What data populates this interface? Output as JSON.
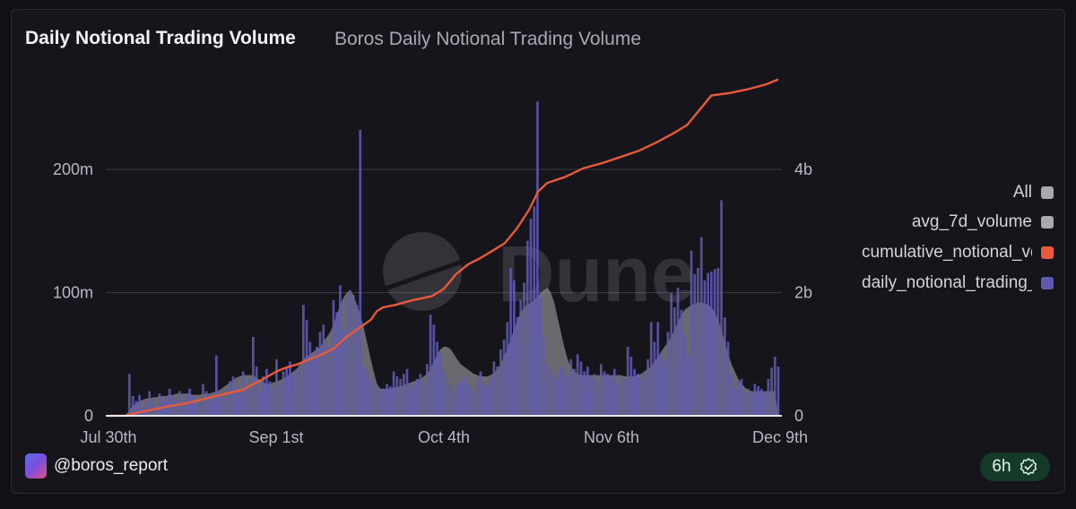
{
  "header": {
    "title": "Daily Notional Trading Volume",
    "subtitle": "Boros Daily Notional Trading Volume"
  },
  "watermark": "Dune",
  "footer": {
    "user": "@boros_report",
    "refresh_label": "6h",
    "refresh_icon": "verified-check-icon"
  },
  "legend": [
    {
      "label": "All",
      "color": "#a8a8ad"
    },
    {
      "label": "avg_7d_volume",
      "color": "#a8a8ad"
    },
    {
      "label": "cumulative_notional_volume",
      "color": "#e85a3a"
    },
    {
      "label": "daily_notional_trading_volume",
      "color": "#5f5ab0"
    }
  ],
  "chart_data": {
    "type": "bar",
    "title": "Daily Notional Trading Volume",
    "x_start_label": "Jul 30th",
    "x_labels": [
      "Jul 30th",
      "Sep 1st",
      "Oct 4th",
      "Nov 6th",
      "Dec 9th"
    ],
    "y_left_ticks": [
      "0",
      "100m",
      "200m"
    ],
    "y_right_ticks": [
      "0",
      "2b",
      "4b"
    ],
    "ylim_left": [
      0,
      250000000
    ],
    "ylim_right": [
      0,
      5000000000
    ],
    "colors": {
      "daily": "#5f5ab0",
      "avg": "#8a8a8f",
      "cumulative": "#e85a3a"
    },
    "series": [
      {
        "name": "daily_notional_trading_volume",
        "axis": "left",
        "values": [
          0.1,
          0.1,
          0.2,
          0.3,
          0.5,
          0.7,
          34,
          16,
          12,
          17,
          6,
          12,
          20,
          14,
          8,
          18,
          12,
          15,
          22,
          16,
          13,
          20,
          10,
          18,
          22,
          16,
          10,
          14,
          26,
          20,
          16,
          12,
          49,
          18,
          14,
          22,
          28,
          32,
          24,
          18,
          36,
          22,
          30,
          64,
          40,
          20,
          32,
          38,
          28,
          22,
          46,
          26,
          36,
          40,
          44,
          34,
          38,
          42,
          90,
          78,
          60,
          48,
          56,
          68,
          74,
          60,
          56,
          94,
          84,
          106,
          70,
          95,
          102,
          98,
          90,
          232,
          40,
          36,
          30,
          28,
          24,
          20,
          22,
          26,
          24,
          36,
          32,
          30,
          34,
          38,
          22,
          26,
          30,
          34,
          28,
          42,
          82,
          74,
          60,
          50,
          36,
          30,
          24,
          20,
          26,
          28,
          32,
          28,
          24,
          18,
          30,
          36,
          26,
          24,
          30,
          44,
          40,
          54,
          62,
          76,
          120,
          110,
          80,
          94,
          108,
          142,
          160,
          170,
          255,
          96,
          64,
          42,
          38,
          34,
          30,
          40,
          36,
          32,
          46,
          38,
          50,
          44,
          36,
          40,
          30,
          34,
          28,
          42,
          36,
          34,
          30,
          38,
          26,
          32,
          30,
          56,
          48,
          38,
          34,
          30,
          36,
          46,
          76,
          60,
          76,
          50,
          44,
          68,
          100,
          88,
          104,
          86,
          66,
          48,
          134,
          115,
          120,
          145,
          110,
          116,
          117,
          119,
          120,
          175,
          80,
          60,
          34,
          22,
          28,
          30,
          20,
          22,
          18,
          26,
          24,
          22,
          20,
          30,
          39,
          48,
          40
        ]
      },
      {
        "name": "avg_7d_volume",
        "axis": "left",
        "values": [
          0.1,
          0.1,
          0.2,
          0.3,
          0.5,
          0.7,
          5,
          8,
          10,
          12,
          13,
          14,
          14,
          15,
          15,
          16,
          16,
          16,
          17,
          17,
          18,
          18,
          18,
          18,
          18,
          17,
          17,
          17,
          18,
          18,
          18,
          19,
          20,
          21,
          23,
          25,
          27,
          29,
          31,
          32,
          33,
          33,
          33,
          33,
          31,
          29,
          27,
          26,
          26,
          27,
          28,
          29,
          30,
          32,
          34,
          36,
          38,
          42,
          46,
          48,
          50,
          52,
          54,
          56,
          60,
          64,
          68,
          74,
          82,
          90,
          96,
          100,
          102,
          98,
          90,
          82,
          72,
          60,
          48,
          36,
          26,
          22,
          22,
          22,
          22,
          23,
          23,
          24,
          25,
          26,
          27,
          28,
          29,
          30,
          32,
          34,
          38,
          44,
          50,
          54,
          56,
          56,
          54,
          50,
          46,
          42,
          40,
          38,
          36,
          34,
          33,
          32,
          32,
          32,
          33,
          35,
          38,
          42,
          48,
          54,
          62,
          70,
          78,
          84,
          88,
          90,
          92,
          94,
          96,
          100,
          102,
          104,
          100,
          92,
          80,
          68,
          56,
          46,
          40,
          36,
          34,
          33,
          33,
          33,
          33,
          33,
          33,
          33,
          33,
          33,
          33,
          33,
          33,
          33,
          32,
          32,
          32,
          32,
          33,
          34,
          36,
          38,
          40,
          44,
          48,
          52,
          56,
          60,
          64,
          70,
          76,
          82,
          86,
          88,
          90,
          91,
          92,
          92,
          91,
          90,
          88,
          84,
          78,
          70,
          60,
          50,
          42,
          36,
          30,
          26,
          23,
          21,
          20,
          20,
          20,
          20,
          20,
          20,
          20,
          20
        ]
      },
      {
        "name": "cumulative_notional_volume",
        "axis": "right",
        "points": [
          [
            0,
            0
          ],
          [
            5,
            0.002
          ],
          [
            10,
            0.06
          ],
          [
            20,
            0.16
          ],
          [
            25,
            0.2
          ],
          [
            35,
            0.32
          ],
          [
            40,
            0.38
          ],
          [
            44,
            0.42
          ],
          [
            46,
            0.48
          ],
          [
            50,
            0.58
          ],
          [
            55,
            0.72
          ],
          [
            58,
            0.78
          ],
          [
            62,
            0.84
          ],
          [
            66,
            0.92
          ],
          [
            70,
            1.0
          ],
          [
            74,
            1.1
          ],
          [
            78,
            1.28
          ],
          [
            82,
            1.42
          ],
          [
            86,
            1.56
          ],
          [
            88,
            1.7
          ],
          [
            90,
            1.76
          ],
          [
            94,
            1.8
          ],
          [
            100,
            1.88
          ],
          [
            106,
            1.94
          ],
          [
            110,
            2.06
          ],
          [
            114,
            2.3
          ],
          [
            118,
            2.46
          ],
          [
            122,
            2.56
          ],
          [
            126,
            2.68
          ],
          [
            130,
            2.8
          ],
          [
            134,
            3.04
          ],
          [
            138,
            3.34
          ],
          [
            141,
            3.64
          ],
          [
            144,
            3.78
          ],
          [
            150,
            3.88
          ],
          [
            156,
            4.02
          ],
          [
            162,
            4.1
          ],
          [
            168,
            4.2
          ],
          [
            174,
            4.3
          ],
          [
            180,
            4.44
          ],
          [
            186,
            4.6
          ],
          [
            190,
            4.72
          ],
          [
            196,
            5.08
          ],
          [
            198,
            5.2
          ],
          [
            204,
            5.24
          ],
          [
            210,
            5.3
          ],
          [
            216,
            5.38
          ],
          [
            220,
            5.46
          ]
        ]
      }
    ]
  }
}
